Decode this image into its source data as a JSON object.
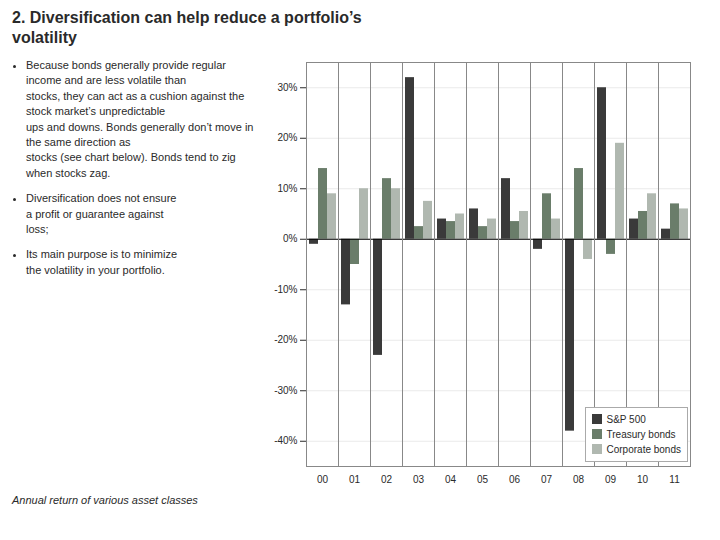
{
  "chart_data": {
    "type": "bar",
    "title": "2. Diversification can help reduce a portfolio’s\nvolatility",
    "annotations": [
      "Because bonds generally provide regular income and are less volatile than\nstocks, they can act as a cushion against the stock market’s unpredictable\nups and downs. Bonds generally don’t move in the same direction as\nstocks (see chart below). Bonds tend to zig when stocks zag.",
      "Diversification does not ensure\na profit or guarantee against\nloss;",
      "Its main purpose is to minimize\nthe volatility in your portfolio."
    ],
    "caption": "Annual return of various asset classes",
    "categories": [
      "00",
      "01",
      "02",
      "03",
      "04",
      "05",
      "06",
      "07",
      "08",
      "09",
      "10",
      "11"
    ],
    "series": [
      {
        "name": "S&P 500",
        "color": "#3A3A3A",
        "values": [
          -1.0,
          -13.0,
          -23.0,
          32.0,
          4.0,
          6.0,
          12.0,
          -2.0,
          -38.0,
          30.0,
          4.0,
          2.0
        ]
      },
      {
        "name": "Treasury bonds",
        "color": "#6A7D6A",
        "values": [
          14.0,
          -5.0,
          12.0,
          2.5,
          3.5,
          2.5,
          3.5,
          9.0,
          14.0,
          -3.0,
          5.5,
          7.0
        ]
      },
      {
        "name": "Corporate bonds",
        "color": "#B0B8B0",
        "values": [
          9.0,
          10.0,
          10.0,
          7.5,
          5.0,
          4.0,
          5.5,
          4.0,
          -4.0,
          19.0,
          9.0,
          6.0
        ]
      }
    ],
    "ylim": [
      -45,
      35
    ],
    "yticks": [
      {
        "value": -40,
        "label": "-40%"
      },
      {
        "value": -30,
        "label": "-30%"
      },
      {
        "value": -20,
        "label": "-20%"
      },
      {
        "value": -10,
        "label": "-10%"
      },
      {
        "value": 0,
        "label": "0%"
      },
      {
        "value": 10,
        "label": "10%"
      },
      {
        "value": 20,
        "label": "20%"
      },
      {
        "value": 30,
        "label": "30%"
      }
    ],
    "grid": true,
    "legend": "lower right"
  }
}
